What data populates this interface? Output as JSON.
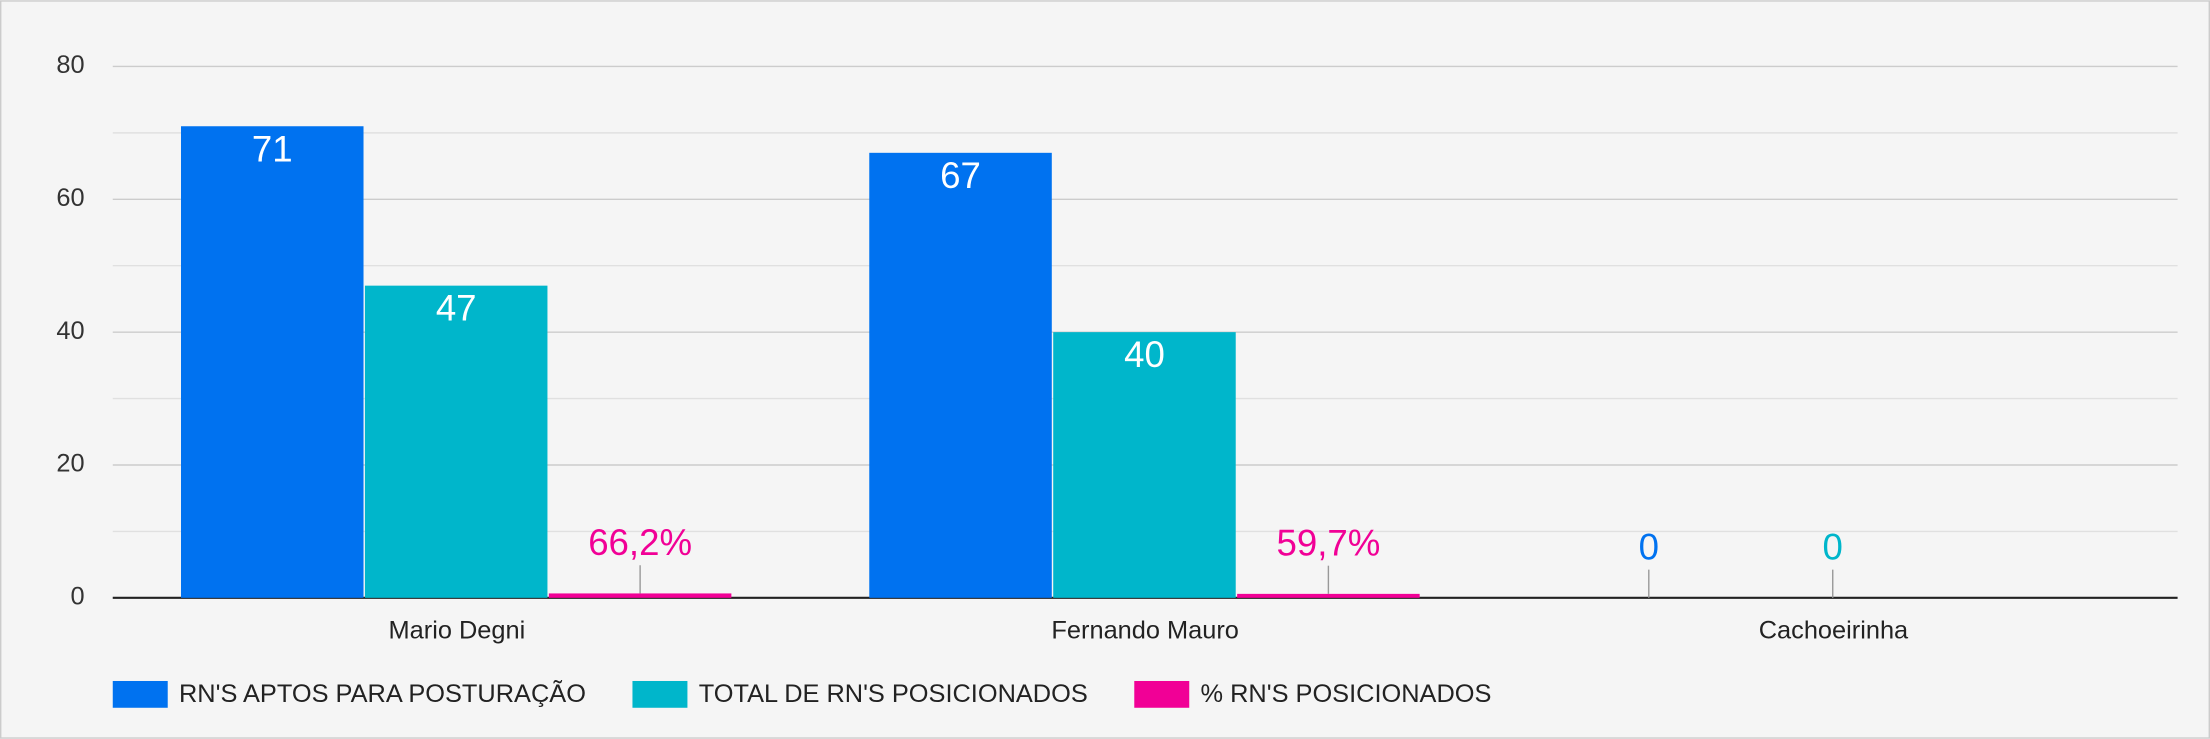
{
  "chart_data": {
    "type": "bar",
    "categories": [
      "Mario Degni",
      "Fernando Mauro",
      "Cachoeirinha"
    ],
    "series": [
      {
        "name": "RN'S APTOS PARA POSTURAÇÃO",
        "color": "#0072f0",
        "values": [
          71,
          67,
          0
        ]
      },
      {
        "name": "TOTAL DE RN'S POSICIONADOS",
        "color": "#00b6cb",
        "values": [
          47,
          40,
          0
        ]
      },
      {
        "name": "% RN'S POSICIONADOS",
        "color": "#f10096",
        "values": [
          0.662,
          0.597,
          null
        ],
        "value_labels": [
          "66,2%",
          "59,7%",
          null
        ]
      }
    ],
    "ylim": [
      0,
      80
    ],
    "yticks": [
      0,
      20,
      40,
      60,
      80
    ],
    "minor_yticks": [
      10,
      30,
      50,
      70
    ],
    "grid": true,
    "legend": "bottom"
  }
}
